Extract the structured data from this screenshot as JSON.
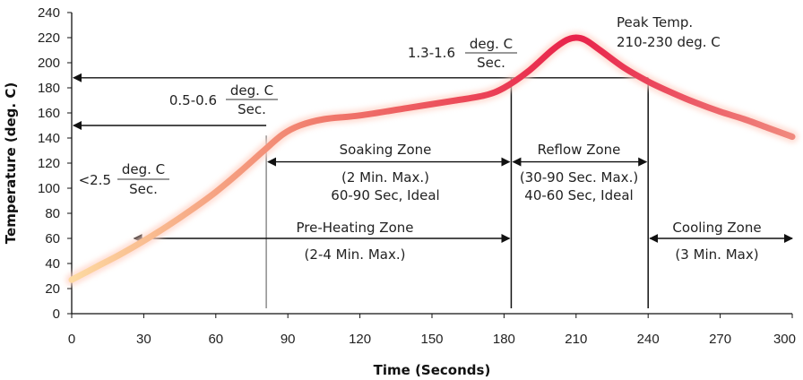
{
  "chart_data": {
    "type": "line",
    "xlabel": "Time (Seconds)",
    "ylabel": "Temperature (deg. C)",
    "xlim": [
      0,
      300
    ],
    "ylim": [
      0,
      240
    ],
    "x_ticks": [
      0,
      30,
      60,
      90,
      120,
      150,
      180,
      210,
      240,
      270,
      300
    ],
    "y_ticks": [
      0,
      20,
      40,
      60,
      80,
      100,
      120,
      140,
      160,
      180,
      200,
      220,
      240
    ],
    "grid": false,
    "series": [
      {
        "x": [
          0,
          10,
          20,
          30,
          40,
          50,
          60,
          70,
          80,
          88,
          95,
          105,
          120,
          140,
          160,
          172,
          180,
          190,
          200,
          206,
          210,
          214,
          220,
          230,
          240,
          250,
          260,
          270,
          280,
          290,
          300
        ],
        "y": [
          27,
          37,
          47,
          58,
          70,
          83,
          97,
          113,
          130,
          143,
          150,
          155,
          158,
          164,
          170,
          174,
          180,
          193,
          210,
          218,
          220,
          218,
          210,
          196,
          185,
          176,
          168,
          161,
          155,
          148,
          141
        ]
      }
    ],
    "annotations": {
      "peak_title": "Peak Temp.",
      "peak_range": "210-230 deg. C",
      "rate_high_value": "1.3-1.6",
      "rate_mid_value": "0.5-0.6",
      "rate_low_value": "<2.5",
      "rate_numerator": "deg. C",
      "rate_denominator": "Sec.",
      "soaking_title": "Soaking Zone",
      "soaking_line1": "(2 Min. Max.)",
      "soaking_line2": "60-90 Sec, Ideal",
      "reflow_title": "Reflow Zone",
      "reflow_line1": "(30-90 Sec. Max.)",
      "reflow_line2": "40-60 Sec, Ideal",
      "preheat_title": "Pre-Heating Zone",
      "preheat_line1": "(2-4 Min. Max.)",
      "cooling_title": "Cooling Zone",
      "cooling_line1": "(3 Min. Max)"
    },
    "markers": {
      "vlines_x": [
        81,
        183,
        240
      ],
      "level_high_y": 188,
      "level_mid_y": 150,
      "soaking_span": [
        81,
        183
      ],
      "soaking_arrow_y": 121,
      "reflow_span": [
        183,
        240
      ],
      "reflow_arrow_y": 121,
      "preheat_span": [
        26,
        183
      ],
      "preheat_arrow_y": 60,
      "cooling_span": [
        240,
        300
      ],
      "cooling_arrow_y": 60
    },
    "colors": {
      "curve_start": "#fdd9a0",
      "curve_mid": "#f07a6c",
      "curve_peak": "#e8224a",
      "curve_end": "#f08a7e",
      "glow": "#ffd4c8"
    }
  }
}
